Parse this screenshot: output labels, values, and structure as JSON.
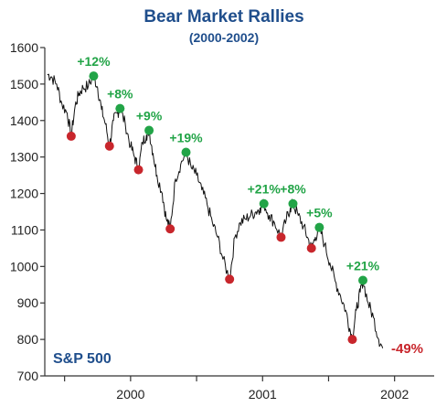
{
  "title": "Bear Market Rallies",
  "subtitle": "(2000-2002)",
  "colors": {
    "title": "#1f4e8c",
    "peak": "#22a447",
    "trough": "#c8262c",
    "line": "#111111",
    "axis": "#333333"
  },
  "chart_data": {
    "type": "line",
    "series_label": "S&P 500",
    "ylim": [
      700,
      1600
    ],
    "y_ticks": [
      700,
      800,
      900,
      1000,
      1100,
      1200,
      1300,
      1400,
      1500,
      1600
    ],
    "x_range": [
      1999.85,
      2002.8
    ],
    "x_year_labels": [
      "2000",
      "2001",
      "2002"
    ],
    "x_minor_ticks": [
      2000,
      2000.5,
      2001,
      2001.5,
      2002,
      2002.5
    ],
    "grid": false,
    "peaks": [
      {
        "x": 2000.22,
        "y": 1522,
        "label": "+12%"
      },
      {
        "x": 2000.42,
        "y": 1433,
        "label": "+8%"
      },
      {
        "x": 2000.64,
        "y": 1373,
        "label": "+9%"
      },
      {
        "x": 2000.92,
        "y": 1313,
        "label": "+19%"
      },
      {
        "x": 2001.51,
        "y": 1172,
        "label": "+21%"
      },
      {
        "x": 2001.73,
        "y": 1172,
        "label": "+8%"
      },
      {
        "x": 2001.93,
        "y": 1107,
        "label": "+5%"
      },
      {
        "x": 2002.26,
        "y": 962,
        "label": "+21%"
      }
    ],
    "troughs": [
      {
        "x": 2000.05,
        "y": 1357
      },
      {
        "x": 2000.34,
        "y": 1330
      },
      {
        "x": 2000.56,
        "y": 1265
      },
      {
        "x": 2000.8,
        "y": 1103
      },
      {
        "x": 2001.25,
        "y": 965
      },
      {
        "x": 2001.64,
        "y": 1080
      },
      {
        "x": 2001.87,
        "y": 1050
      },
      {
        "x": 2002.18,
        "y": 800
      }
    ],
    "line_points": [
      [
        1999.87,
        1527
      ],
      [
        1999.9,
        1520
      ],
      [
        1999.94,
        1500
      ],
      [
        1999.98,
        1445
      ],
      [
        2000.02,
        1420
      ],
      [
        2000.05,
        1357
      ],
      [
        2000.08,
        1440
      ],
      [
        2000.11,
        1475
      ],
      [
        2000.14,
        1490
      ],
      [
        2000.18,
        1495
      ],
      [
        2000.22,
        1522
      ],
      [
        2000.25,
        1490
      ],
      [
        2000.28,
        1430
      ],
      [
        2000.31,
        1390
      ],
      [
        2000.34,
        1330
      ],
      [
        2000.37,
        1400
      ],
      [
        2000.4,
        1420
      ],
      [
        2000.42,
        1433
      ],
      [
        2000.46,
        1390
      ],
      [
        2000.5,
        1330
      ],
      [
        2000.53,
        1300
      ],
      [
        2000.56,
        1265
      ],
      [
        2000.59,
        1340
      ],
      [
        2000.62,
        1360
      ],
      [
        2000.64,
        1373
      ],
      [
        2000.67,
        1310
      ],
      [
        2000.7,
        1250
      ],
      [
        2000.74,
        1200
      ],
      [
        2000.77,
        1130
      ],
      [
        2000.8,
        1103
      ],
      [
        2000.84,
        1240
      ],
      [
        2000.88,
        1280
      ],
      [
        2000.92,
        1313
      ],
      [
        2000.96,
        1270
      ],
      [
        2001.0,
        1250
      ],
      [
        2001.04,
        1210
      ],
      [
        2001.08,
        1170
      ],
      [
        2001.12,
        1120
      ],
      [
        2001.16,
        1080
      ],
      [
        2001.2,
        1020
      ],
      [
        2001.25,
        965
      ],
      [
        2001.29,
        1080
      ],
      [
        2001.33,
        1120
      ],
      [
        2001.37,
        1130
      ],
      [
        2001.41,
        1140
      ],
      [
        2001.45,
        1150
      ],
      [
        2001.48,
        1160
      ],
      [
        2001.51,
        1172
      ],
      [
        2001.55,
        1140
      ],
      [
        2001.59,
        1120
      ],
      [
        2001.64,
        1080
      ],
      [
        2001.68,
        1130
      ],
      [
        2001.71,
        1160
      ],
      [
        2001.73,
        1172
      ],
      [
        2001.77,
        1140
      ],
      [
        2001.81,
        1110
      ],
      [
        2001.84,
        1080
      ],
      [
        2001.87,
        1050
      ],
      [
        2001.9,
        1080
      ],
      [
        2001.93,
        1107
      ],
      [
        2001.97,
        1060
      ],
      [
        2002.01,
        1010
      ],
      [
        2002.05,
        960
      ],
      [
        2002.09,
        920
      ],
      [
        2002.13,
        880
      ],
      [
        2002.16,
        830
      ],
      [
        2002.18,
        800
      ],
      [
        2002.21,
        880
      ],
      [
        2002.24,
        930
      ],
      [
        2002.26,
        962
      ],
      [
        2002.3,
        900
      ],
      [
        2002.34,
        860
      ],
      [
        2002.38,
        800
      ],
      [
        2002.41,
        776
      ]
    ],
    "end_label": "-49%"
  }
}
